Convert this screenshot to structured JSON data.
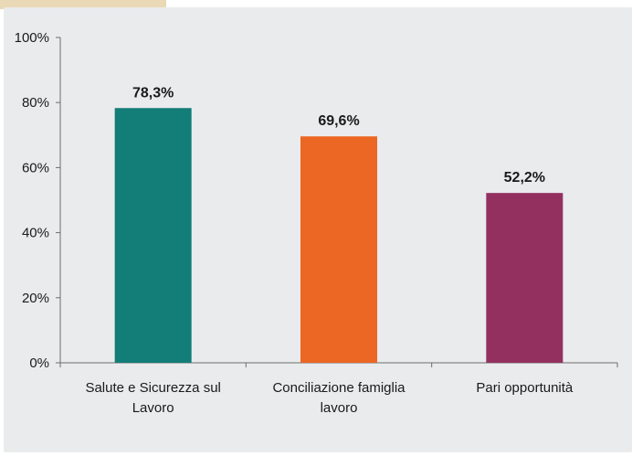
{
  "chart_data": {
    "type": "bar",
    "categories": [
      [
        "Salute e Sicurezza sul",
        "Lavoro"
      ],
      [
        "Conciliazione famiglia",
        "lavoro"
      ],
      [
        "Pari opportunità"
      ]
    ],
    "values": [
      78.3,
      69.6,
      52.2
    ],
    "value_labels": [
      "78,3%",
      "69,6%",
      "52,2%"
    ],
    "colors": [
      "#137d78",
      "#ec6624",
      "#93305f"
    ],
    "ylim": [
      0,
      100
    ],
    "yticks": [
      0,
      20,
      40,
      60,
      80,
      100
    ],
    "ytick_labels": [
      "0%",
      "20%",
      "40%",
      "60%",
      "80%",
      "100%"
    ],
    "title": "",
    "xlabel": "",
    "ylabel": "",
    "grid": false,
    "legend": "none"
  }
}
